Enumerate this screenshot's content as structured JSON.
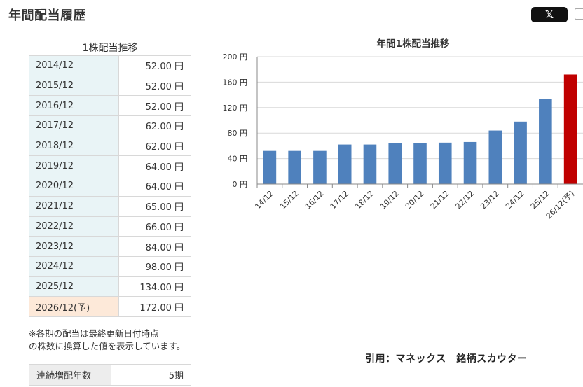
{
  "page_title": "年間配当履歴",
  "share": {
    "x_label": "𝕏",
    "x_icon": "x-logo-icon",
    "copy_icon": "copy-icon"
  },
  "table": {
    "caption": "1株配当推移",
    "rows": [
      {
        "year": "2014/12",
        "value": "52.00 円"
      },
      {
        "year": "2015/12",
        "value": "52.00 円"
      },
      {
        "year": "2016/12",
        "value": "52.00 円"
      },
      {
        "year": "2017/12",
        "value": "62.00 円"
      },
      {
        "year": "2018/12",
        "value": "62.00 円"
      },
      {
        "year": "2019/12",
        "value": "64.00 円"
      },
      {
        "year": "2020/12",
        "value": "64.00 円"
      },
      {
        "year": "2021/12",
        "value": "65.00 円"
      },
      {
        "year": "2022/12",
        "value": "66.00 円"
      },
      {
        "year": "2023/12",
        "value": "84.00 円"
      },
      {
        "year": "2024/12",
        "value": "98.00 円"
      },
      {
        "year": "2025/12",
        "value": "134.00 円"
      },
      {
        "year": "2026/12(予)",
        "value": "172.00 円"
      }
    ]
  },
  "note_line1": "※各期の配当は最終更新日付時点",
  "note_line2": "の株数に換算した値を表示しています。",
  "streak": {
    "label": "連続増配年数",
    "value": "5期"
  },
  "source": "引用：マネックス　銘柄スカウター",
  "colors": {
    "bar": "#4f81bd",
    "forecast_bar": "#c00000",
    "grid": "#d9d9d9"
  },
  "chart_data": {
    "type": "bar",
    "title": "年間1株配当推移",
    "categories": [
      "14/12",
      "15/12",
      "16/12",
      "17/12",
      "18/12",
      "19/12",
      "20/12",
      "21/12",
      "22/12",
      "23/12",
      "24/12",
      "25/12",
      "26/12(予)"
    ],
    "values": [
      52,
      52,
      52,
      62,
      62,
      64,
      64,
      65,
      66,
      84,
      98,
      134,
      172
    ],
    "forecast_index": 12,
    "ylim": [
      0,
      200
    ],
    "yticks": [
      0,
      40,
      80,
      120,
      160,
      200
    ],
    "ytick_suffix": " 円",
    "grid": true,
    "legend": "none"
  }
}
